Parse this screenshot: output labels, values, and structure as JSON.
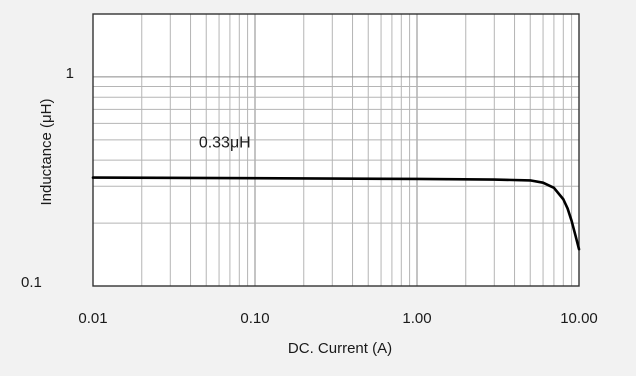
{
  "chart_data": {
    "type": "line",
    "xscale": "log",
    "yscale": "log",
    "xlabel": "DC. Current (A)",
    "ylabel": "Inductance (μH)",
    "xlim": [
      0.01,
      10
    ],
    "ylim": [
      0.1,
      2
    ],
    "x_ticks": [
      0.01,
      0.1,
      1,
      10
    ],
    "x_tick_labels": [
      "0.01",
      "0.10",
      "1.00",
      "10.00"
    ],
    "y_ticks": [
      0.1,
      1
    ],
    "y_tick_labels": [
      "0.1",
      "1"
    ],
    "grid": true,
    "annotations": [
      {
        "text": "0.33μH",
        "x": 0.045,
        "y": 0.46
      }
    ],
    "series": [
      {
        "color": "#000000",
        "x": [
          0.01,
          0.1,
          1,
          3,
          5,
          6,
          7,
          8,
          8.5,
          9,
          9.5,
          10
        ],
        "y": [
          0.33,
          0.328,
          0.325,
          0.323,
          0.32,
          0.312,
          0.295,
          0.26,
          0.235,
          0.205,
          0.175,
          0.15
        ]
      }
    ]
  }
}
